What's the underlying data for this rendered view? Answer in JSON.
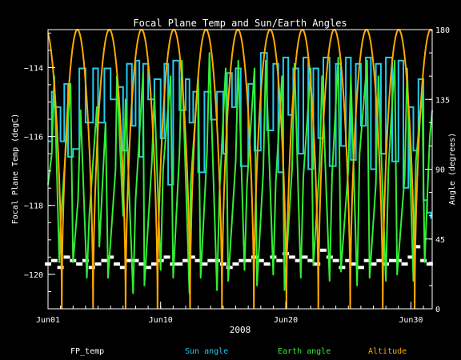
{
  "chart_data": {
    "type": "line",
    "title": "Focal Plane Temp and Sun/Earth Angles",
    "xlabel": "2008",
    "ylabel": "Focal Plane Temp (degC)",
    "y2label": "Angle (degrees)",
    "xlim": [
      0,
      30.7
    ],
    "ylim": [
      -121.0,
      -112.9
    ],
    "y2lim": [
      0,
      180
    ],
    "x_ticks": [
      {
        "value": 0,
        "label": "Jun01"
      },
      {
        "value": 9,
        "label": "Jun10"
      },
      {
        "value": 19,
        "label": "Jun20"
      },
      {
        "value": 29,
        "label": "Jun30"
      }
    ],
    "y_ticks": [
      -114,
      -116,
      -118,
      -120
    ],
    "y2_ticks": [
      0,
      45,
      90,
      135,
      180
    ],
    "grid": false,
    "legend_position": "bottom",
    "series": [
      {
        "name": "FP_temp",
        "axis": "left",
        "color": "#ffffff",
        "style": "points",
        "x": [
          0.0,
          0.5,
          1.0,
          1.5,
          2.0,
          2.5,
          3.0,
          3.5,
          4.0,
          4.5,
          5.0,
          5.5,
          6.0,
          6.5,
          7.0,
          7.5,
          8.0,
          8.5,
          9.0,
          9.5,
          10.0,
          10.5,
          11.0,
          11.5,
          12.0,
          12.5,
          13.0,
          13.5,
          14.0,
          14.5,
          15.0,
          15.5,
          16.0,
          16.5,
          17.0,
          17.5,
          18.0,
          18.5,
          19.0,
          19.5,
          20.0,
          20.5,
          21.0,
          21.5,
          22.0,
          22.5,
          23.0,
          23.5,
          24.0,
          24.5,
          25.0,
          25.5,
          26.0,
          26.5,
          27.0,
          27.5,
          28.0,
          28.5,
          29.0,
          29.5,
          30.0,
          30.5
        ],
        "values": [
          -119.7,
          -119.6,
          -119.8,
          -119.5,
          -119.6,
          -119.7,
          -119.6,
          -119.8,
          -119.7,
          -119.6,
          -119.5,
          -119.7,
          -119.8,
          -119.6,
          -119.6,
          -119.7,
          -119.8,
          -119.7,
          -119.6,
          -119.5,
          -119.7,
          -119.7,
          -119.6,
          -119.5,
          -119.6,
          -119.7,
          -119.6,
          -119.6,
          -119.7,
          -119.8,
          -119.7,
          -119.6,
          -119.6,
          -119.5,
          -119.6,
          -119.7,
          -119.5,
          -119.6,
          -119.4,
          -119.5,
          -119.6,
          -119.5,
          -119.6,
          -119.7,
          -119.3,
          -119.5,
          -119.6,
          -119.8,
          -119.6,
          -119.7,
          -119.8,
          -119.6,
          -119.7,
          -119.6,
          -119.7,
          -119.6,
          -119.6,
          -119.7,
          -119.5,
          -119.2,
          -119.6,
          -119.7
        ]
      },
      {
        "name": "Sun angle",
        "axis": "right",
        "color": "#22ccee",
        "style": "steps",
        "x": [
          0,
          0.3,
          0.5,
          1.0,
          1.3,
          1.6,
          2.0,
          2.5,
          3.0,
          3.6,
          4.0,
          4.5,
          5.0,
          5.5,
          6.0,
          6.3,
          6.7,
          7.0,
          7.3,
          7.6,
          8.0,
          8.5,
          9.0,
          9.3,
          9.6,
          10.0,
          10.5,
          11.0,
          11.3,
          11.6,
          12.0,
          12.5,
          13.0,
          13.5,
          14.0,
          14.3,
          14.7,
          15.0,
          15.4,
          16.0,
          16.5,
          17.0,
          17.5,
          18.0,
          18.4,
          18.8,
          19.2,
          19.6,
          20.0,
          20.4,
          20.8,
          21.2,
          21.6,
          22.0,
          22.5,
          23.0,
          23.4,
          23.8,
          24.2,
          24.6,
          25.0,
          25.4,
          25.8,
          26.2,
          26.6,
          27.0,
          27.5,
          28.0,
          28.4,
          28.8,
          29.2,
          29.6,
          30.0,
          30.3,
          30.6
        ],
        "values": [
          108,
          140,
          130,
          108,
          145,
          98,
          103,
          155,
          120,
          155,
          120,
          155,
          135,
          143,
          102,
          158,
          118,
          160,
          98,
          158,
          135,
          148,
          110,
          158,
          80,
          160,
          128,
          148,
          120,
          140,
          88,
          140,
          122,
          140,
          100,
          152,
          130,
          155,
          92,
          145,
          102,
          165,
          115,
          158,
          88,
          162,
          125,
          155,
          100,
          162,
          90,
          155,
          110,
          162,
          92,
          158,
          105,
          162,
          96,
          158,
          118,
          162,
          90,
          158,
          100,
          162,
          95,
          160,
          78,
          130,
          102,
          148,
          70,
          62,
          58
        ]
      },
      {
        "name": "Earth angle",
        "axis": "right",
        "color": "#33ee33",
        "style": "line",
        "x": [
          0,
          0.3,
          0.5,
          0.9,
          1.0,
          1.8,
          2.0,
          2.4,
          2.6,
          3.1,
          3.3,
          3.9,
          4.1,
          4.6,
          4.8,
          5.4,
          5.5,
          6.0,
          6.2,
          6.8,
          7.0,
          7.6,
          7.7,
          8.3,
          8.5,
          9.0,
          9.2,
          9.8,
          10.0,
          10.5,
          10.7,
          11.3,
          11.4,
          12.0,
          12.2,
          12.7,
          12.9,
          13.5,
          13.7,
          14.2,
          14.4,
          15.0,
          15.2,
          15.7,
          15.9,
          16.5,
          16.7,
          17.2,
          17.4,
          18.0,
          18.2,
          18.7,
          18.9,
          19.5,
          19.7,
          20.2,
          20.4,
          21.0,
          21.2,
          21.7,
          21.9,
          22.5,
          22.7,
          23.2,
          23.4,
          24.0,
          24.2,
          24.7,
          24.9,
          25.5,
          25.7,
          26.2,
          26.4,
          27.0,
          27.2,
          27.7,
          27.9,
          28.5,
          28.7,
          29.2,
          29.4,
          29.9,
          30.1,
          30.5,
          30.7
        ],
        "values": [
          80,
          100,
          150,
          30,
          55,
          145,
          30,
          70,
          128,
          20,
          60,
          130,
          40,
          120,
          20,
          90,
          150,
          60,
          135,
          10,
          70,
          152,
          15,
          95,
          138,
          25,
          90,
          150,
          20,
          100,
          160,
          10,
          80,
          150,
          20,
          100,
          165,
          12,
          75,
          155,
          18,
          95,
          160,
          25,
          80,
          155,
          15,
          88,
          160,
          22,
          82,
          150,
          12,
          90,
          158,
          20,
          85,
          155,
          28,
          92,
          150,
          18,
          86,
          162,
          24,
          90,
          150,
          15,
          100,
          160,
          20,
          80,
          150,
          18,
          90,
          160,
          22,
          85,
          155,
          18,
          95,
          140,
          30,
          110,
          128
        ]
      },
      {
        "name": "Altitude",
        "axis": "right",
        "color": "#ffaa00",
        "style": "line",
        "minima": [
          1.1,
          3.6,
          6.2,
          8.75,
          11.35,
          13.9,
          16.45,
          19.05,
          21.6,
          24.15,
          26.75,
          29.3
        ],
        "min_value": 0,
        "max_value": 180
      }
    ]
  },
  "legend": [
    {
      "label": "FP_temp",
      "color": "#ffffff"
    },
    {
      "label": "Sun angle",
      "color": "#22ccee"
    },
    {
      "label": "Earth angle",
      "color": "#33ee33"
    },
    {
      "label": "Altitude",
      "color": "#ffaa00"
    }
  ]
}
